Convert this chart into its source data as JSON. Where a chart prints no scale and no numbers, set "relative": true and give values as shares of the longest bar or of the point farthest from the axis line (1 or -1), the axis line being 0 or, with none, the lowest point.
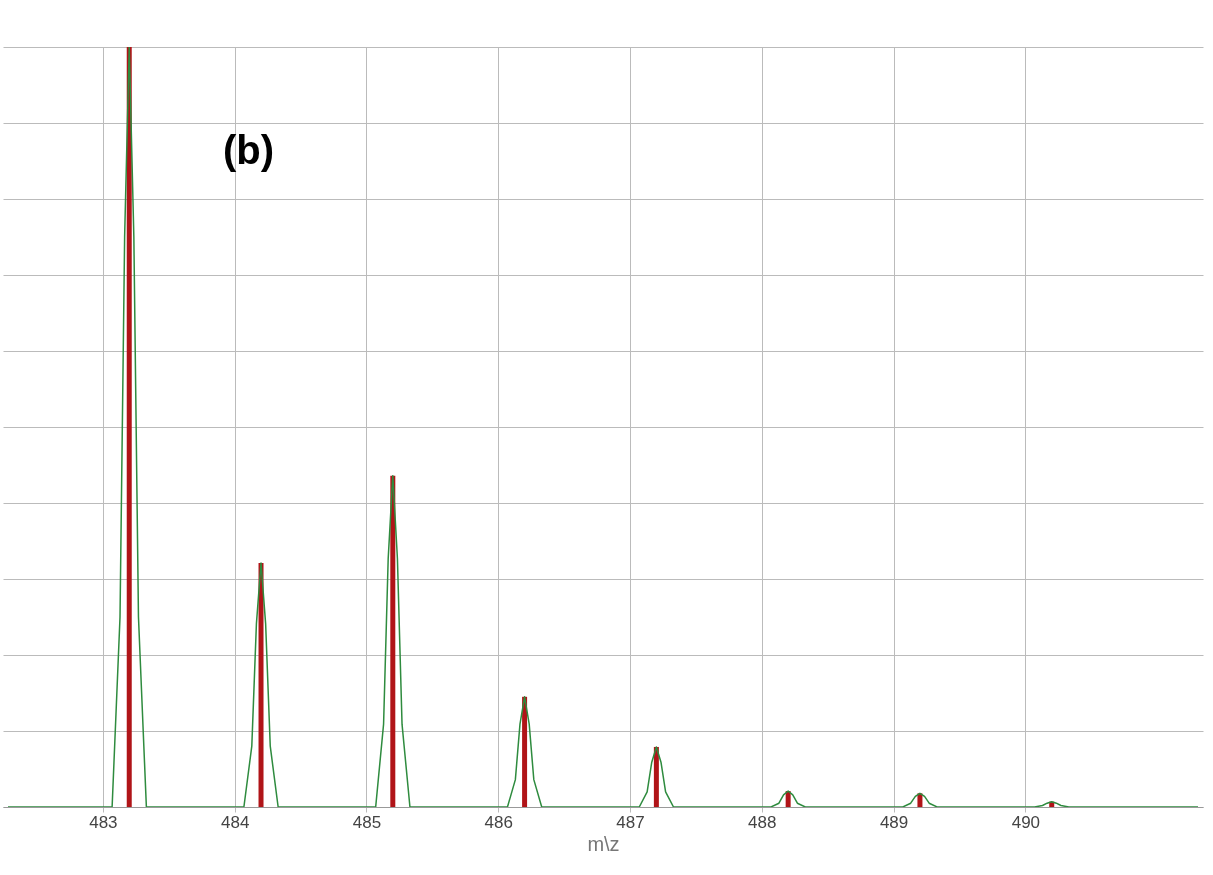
{
  "chart_data": {
    "type": "bar",
    "relative": true,
    "xlabel": "m\\z",
    "annotations": [
      "(b)"
    ],
    "grid": true,
    "xlim": [
      482.28,
      491.31
    ],
    "xticks": [
      483,
      484,
      485,
      486,
      487,
      488,
      489,
      490
    ],
    "series": [
      {
        "type": "line",
        "color": "#2e8b3e",
        "x": [
          482.28,
          483.07,
          483.13,
          483.165,
          483.2,
          483.235,
          483.27,
          483.33,
          484.07,
          484.13,
          484.165,
          484.2,
          484.235,
          484.27,
          484.33,
          485.07,
          485.13,
          485.165,
          485.2,
          485.235,
          485.27,
          485.33,
          486.07,
          486.13,
          486.165,
          486.2,
          486.235,
          486.27,
          486.33,
          487.07,
          487.13,
          487.165,
          487.2,
          487.235,
          487.27,
          487.33,
          488.07,
          488.13,
          488.165,
          488.2,
          488.235,
          488.27,
          488.33,
          489.07,
          489.13,
          489.165,
          489.2,
          489.235,
          489.27,
          489.33,
          490.07,
          490.13,
          490.165,
          490.2,
          490.235,
          490.27,
          490.33,
          491.31
        ],
        "values": [
          0,
          0,
          0.25,
          0.75,
          1,
          0.75,
          0.25,
          0,
          0,
          0.08,
          0.241,
          0.321,
          0.241,
          0.08,
          0,
          0,
          0.109,
          0.327,
          0.436,
          0.327,
          0.109,
          0,
          0,
          0.036,
          0.109,
          0.145,
          0.109,
          0.036,
          0,
          0,
          0.02,
          0.059,
          0.079,
          0.059,
          0.02,
          0,
          0,
          0.005,
          0.016,
          0.021,
          0.016,
          0.005,
          0,
          0,
          0.005,
          0.014,
          0.018,
          0.014,
          0.005,
          0,
          0,
          0.002,
          0.005,
          0.007,
          0.005,
          0.002,
          0,
          0
        ]
      },
      {
        "color": "#b01418",
        "x": [
          483.2,
          484.2,
          485.2,
          486.2,
          487.2,
          488.2,
          489.2,
          490.2
        ],
        "values": [
          1,
          0.321,
          0.436,
          0.145,
          0.079,
          0.021,
          0.018,
          0.007
        ]
      }
    ]
  }
}
